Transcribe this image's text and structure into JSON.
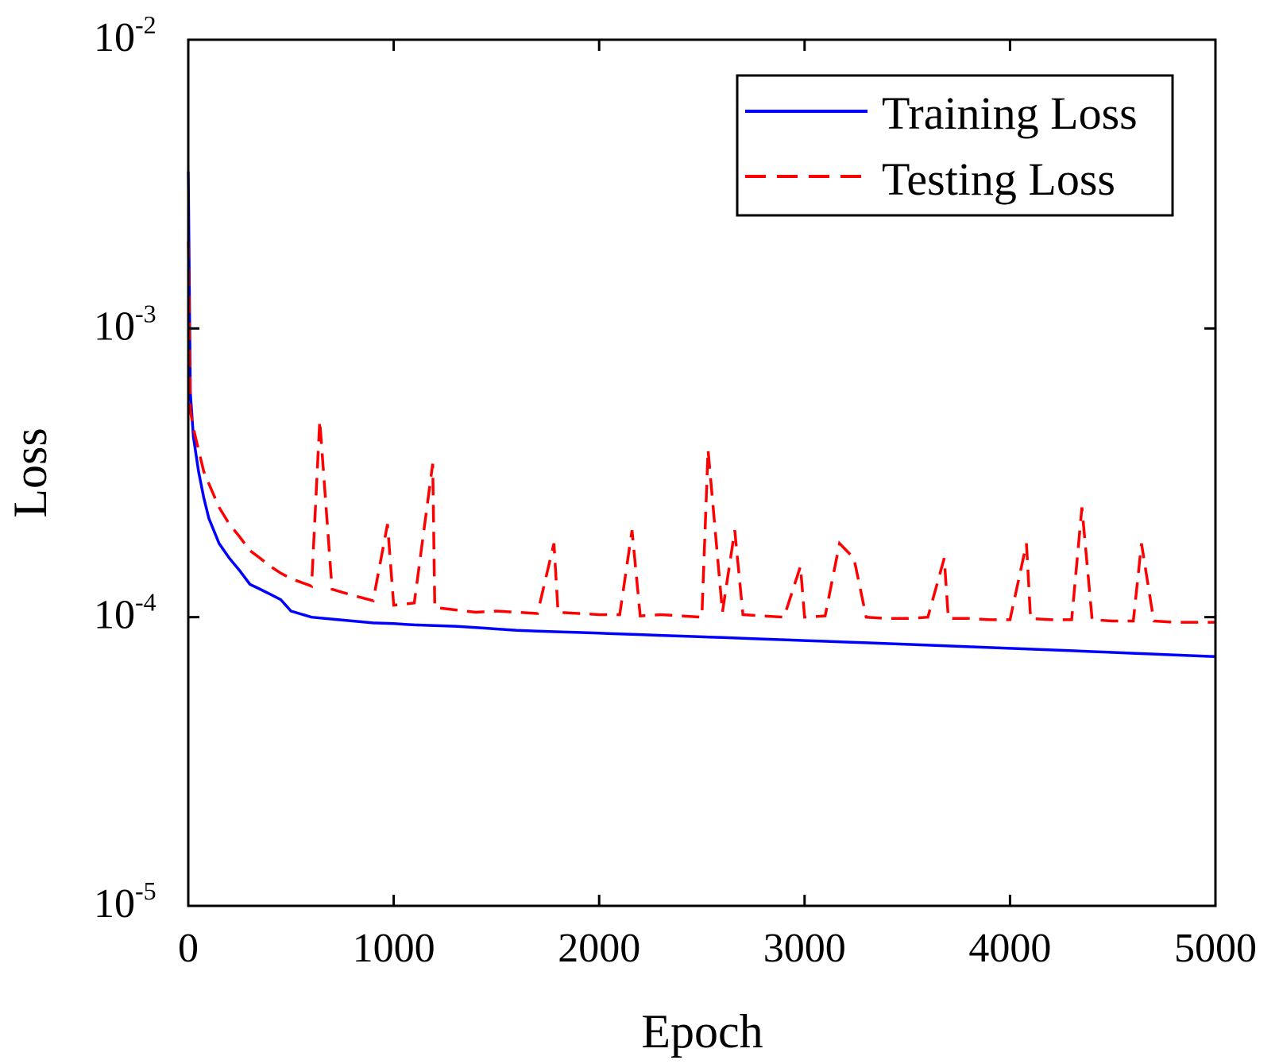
{
  "chart_data": {
    "type": "line",
    "xlabel": "Epoch",
    "ylabel": "Loss",
    "yscale": "log",
    "xlim": [
      0,
      5000
    ],
    "ylim": [
      1e-05,
      0.01
    ],
    "xticks": [
      "0",
      "1000",
      "2000",
      "3000",
      "4000",
      "5000"
    ],
    "yticks": [
      {
        "base": "10",
        "exp": "-5",
        "value": 1e-05
      },
      {
        "base": "10",
        "exp": "-4",
        "value": 0.0001
      },
      {
        "base": "10",
        "exp": "-3",
        "value": 0.001
      },
      {
        "base": "10",
        "exp": "-2",
        "value": 0.01
      }
    ],
    "legend_position": "top-right",
    "series": [
      {
        "name": "Training Loss",
        "color": "#0000ff",
        "style": "solid",
        "x": [
          0,
          10,
          25,
          50,
          75,
          100,
          150,
          200,
          250,
          300,
          350,
          400,
          450,
          500,
          600,
          700,
          800,
          900,
          1000,
          1100,
          1200,
          1300,
          1400,
          1500,
          1600,
          1700,
          1800,
          1900,
          2000,
          2100,
          2200,
          2300,
          2400,
          2500,
          2600,
          2700,
          2800,
          2900,
          3000,
          3100,
          3200,
          3300,
          3400,
          3500,
          3600,
          3700,
          3800,
          3900,
          4000,
          4100,
          4200,
          4300,
          4400,
          4500,
          4600,
          4700,
          4800,
          4900,
          5000
        ],
        "values": [
          0.0035,
          0.0006,
          0.00042,
          0.00032,
          0.00026,
          0.00022,
          0.00018,
          0.00016,
          0.000145,
          0.00013,
          0.000125,
          0.00012,
          0.000115,
          0.000105,
          0.0001,
          9.85e-05,
          9.7e-05,
          9.55e-05,
          9.5e-05,
          9.4e-05,
          9.35e-05,
          9.3e-05,
          9.2e-05,
          9.1e-05,
          9e-05,
          8.95e-05,
          8.9e-05,
          8.85e-05,
          8.8e-05,
          8.75e-05,
          8.7e-05,
          8.65e-05,
          8.6e-05,
          8.55e-05,
          8.5e-05,
          8.45e-05,
          8.4e-05,
          8.35e-05,
          8.3e-05,
          8.25e-05,
          8.2e-05,
          8.15e-05,
          8.1e-05,
          8.05e-05,
          8e-05,
          7.95e-05,
          7.9e-05,
          7.85e-05,
          7.8e-05,
          7.75e-05,
          7.7e-05,
          7.65e-05,
          7.6e-05,
          7.55e-05,
          7.5e-05,
          7.45e-05,
          7.4e-05,
          7.35e-05,
          7.3e-05
        ]
      },
      {
        "name": "Testing Loss",
        "color": "#ff0000",
        "style": "dashed",
        "x": [
          0,
          10,
          25,
          50,
          75,
          100,
          150,
          200,
          250,
          300,
          350,
          400,
          450,
          500,
          600,
          640,
          700,
          800,
          900,
          970,
          1000,
          1100,
          1190,
          1200,
          1300,
          1400,
          1500,
          1600,
          1700,
          1780,
          1800,
          1900,
          2000,
          2100,
          2160,
          2200,
          2300,
          2400,
          2500,
          2530,
          2600,
          2660,
          2700,
          2800,
          2900,
          2980,
          3000,
          3100,
          3170,
          3240,
          3300,
          3400,
          3500,
          3600,
          3680,
          3700,
          3800,
          3900,
          4000,
          4080,
          4100,
          4200,
          4300,
          4350,
          4400,
          4500,
          4600,
          4640,
          4700,
          4800,
          4900,
          5000
        ],
        "values": [
          0.002,
          0.00052,
          0.00045,
          0.00038,
          0.00032,
          0.00029,
          0.00024,
          0.00021,
          0.00019,
          0.00017,
          0.00016,
          0.00015,
          0.000142,
          0.000136,
          0.000128,
          0.00048,
          0.000125,
          0.000119,
          0.000114,
          0.00021,
          0.00011,
          0.000112,
          0.00034,
          0.000108,
          0.000106,
          0.000104,
          0.000105,
          0.000104,
          0.000103,
          0.00018,
          0.000104,
          0.000103,
          0.000102,
          0.000102,
          0.0002,
          0.000101,
          0.000102,
          0.000101,
          0.0001,
          0.00038,
          0.000104,
          0.0002,
          0.000102,
          0.000101,
          0.0001,
          0.00015,
          0.0001,
          0.000101,
          0.00018,
          0.00016,
          0.0001,
          9.9e-05,
          9.9e-05,
          0.0001,
          0.00016,
          9.9e-05,
          9.9e-05,
          9.8e-05,
          9.8e-05,
          0.00018,
          9.9e-05,
          9.8e-05,
          9.8e-05,
          0.00024,
          9.8e-05,
          9.7e-05,
          9.7e-05,
          0.00018,
          9.7e-05,
          9.6e-05,
          9.6e-05,
          9.6e-05
        ]
      }
    ]
  }
}
